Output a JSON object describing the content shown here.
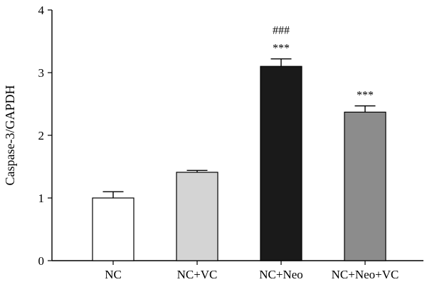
{
  "chart_data": {
    "type": "bar",
    "ylabel": "Caspase-3/GAPDH",
    "xlabel": "",
    "ylim": [
      0,
      4
    ],
    "yticks": [
      0,
      1,
      2,
      3,
      4
    ],
    "grid": false,
    "categories": [
      "NC",
      "NC+VC",
      "NC+Neo",
      "NC+Neo+VC"
    ],
    "values": [
      1.0,
      1.41,
      3.1,
      2.37
    ],
    "errors": [
      0.1,
      0.03,
      0.12,
      0.1
    ],
    "colors": [
      "#ffffff",
      "#d4d4d4",
      "#1a1a1a",
      "#8c8c8c"
    ],
    "annotations": [
      [],
      [],
      [
        "###",
        "***"
      ],
      [
        "***"
      ]
    ]
  }
}
